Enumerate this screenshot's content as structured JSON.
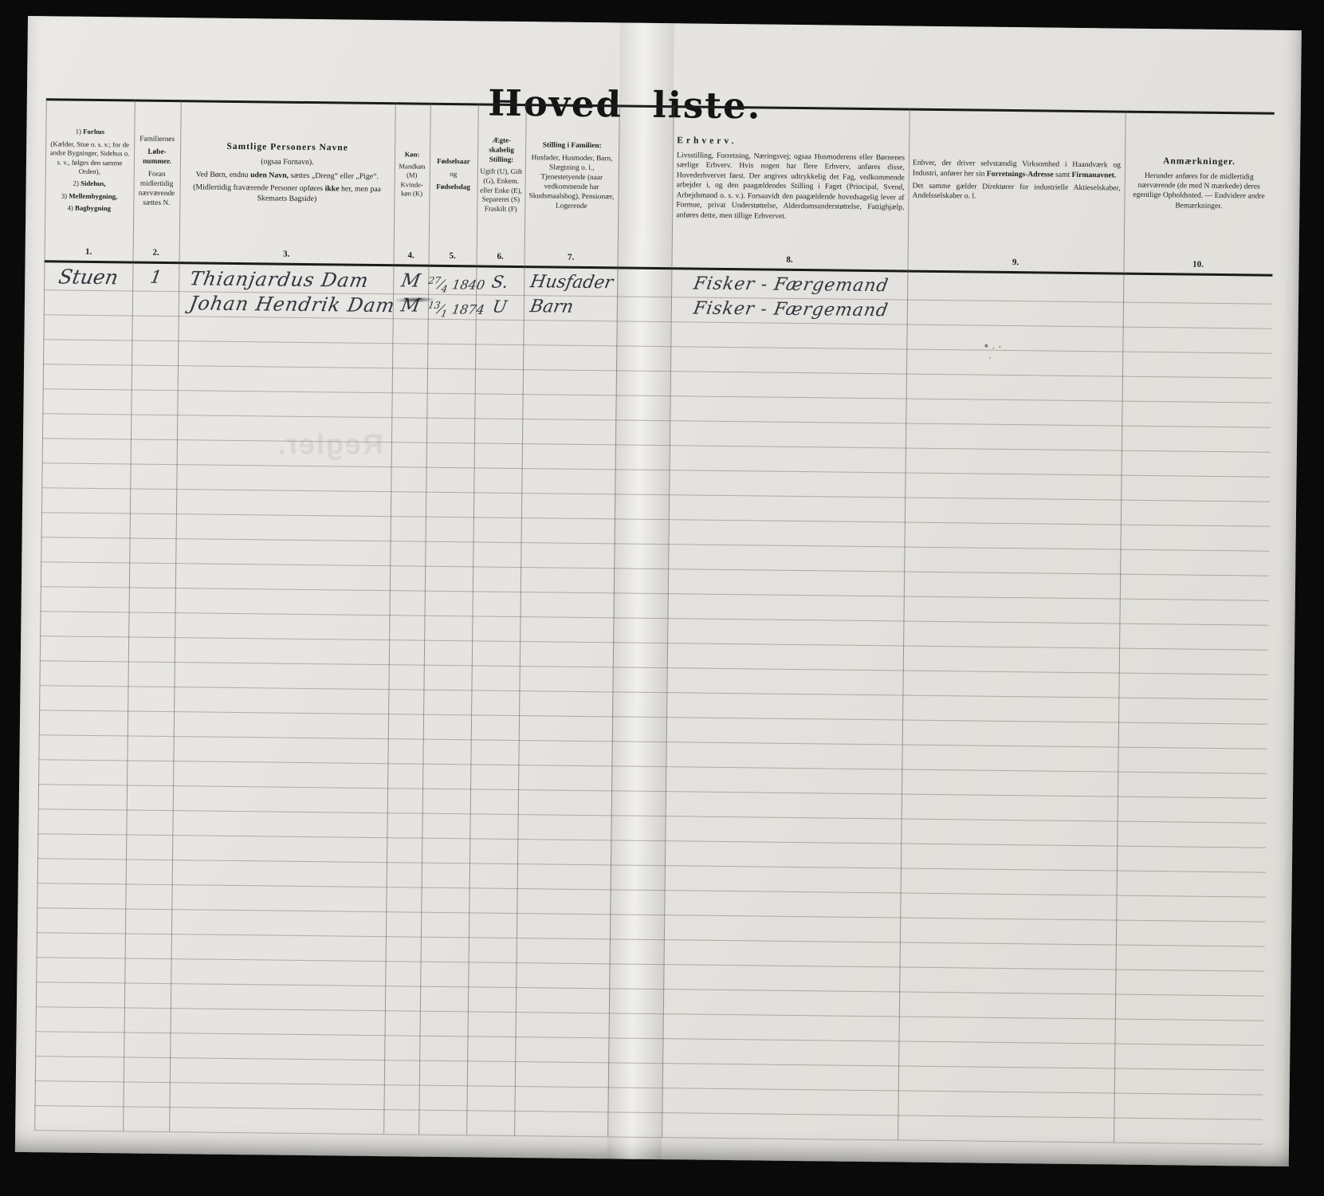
{
  "page": {
    "title": "Hoved liste."
  },
  "colors": {
    "background": "#0a0a0a",
    "paper": "#e5e3df",
    "ink": "#1b1b1b",
    "handwriting_ink": "#34343f",
    "faint_line": "#a5a29b"
  },
  "artifacts": {
    "bleed_text": "Regler."
  },
  "table": {
    "row_count": 35,
    "columns": [
      {
        "key": "c1",
        "number": "1.",
        "paragraphs": [
          {
            "seg": [
              {
                "t": "1) "
              },
              {
                "t": "Forhus",
                "b": true
              }
            ]
          },
          {
            "seg": [
              {
                "t": "(Kælder, Stue o. s. v.; for de andre Bygninger, Sidehus o. s. v., følges den samme Orden),"
              }
            ]
          },
          {
            "seg": [
              {
                "t": "2) "
              },
              {
                "t": "Sidehus,",
                "b": true
              }
            ]
          },
          {
            "seg": [
              {
                "t": "3) "
              },
              {
                "t": "Mellembygning,",
                "b": true
              }
            ]
          },
          {
            "seg": [
              {
                "t": "4) "
              },
              {
                "t": "Bagbygning",
                "b": true
              }
            ]
          }
        ]
      },
      {
        "key": "c2",
        "number": "2.",
        "paragraphs": [
          {
            "seg": [
              {
                "t": "Familiernes"
              }
            ]
          },
          {
            "seg": [
              {
                "t": "Løbe-nummer.",
                "b": true
              }
            ]
          },
          {
            "seg": [
              {
                "t": "Foran midlertidig nærværende sættes N."
              }
            ]
          }
        ]
      },
      {
        "key": "c3",
        "number": "3.",
        "paragraphs": [
          {
            "hd": true,
            "seg": [
              {
                "t": "Samtlige Personers Navne",
                "b": true
              }
            ]
          },
          {
            "seg": [
              {
                "t": "(ogsaa Fornavn)."
              }
            ]
          },
          {
            "seg": [
              {
                "t": "Ved Børn, endnu "
              },
              {
                "t": "uden Navn,",
                "b": true
              },
              {
                "t": " sættes „Dreng“ eller „Pige“."
              }
            ]
          },
          {
            "seg": [
              {
                "t": "(Midlertidig fraværende Personer opføres "
              },
              {
                "t": "ikke",
                "b": true
              },
              {
                "t": " her, men paa Skemaets Bagside)"
              }
            ]
          }
        ]
      },
      {
        "key": "c4",
        "number": "4.",
        "paragraphs": [
          {
            "seg": [
              {
                "t": "Køn:",
                "b": true
              }
            ]
          },
          {
            "seg": [
              {
                "t": "Mandkøn (M) Kvinde-køn (K)"
              }
            ]
          }
        ]
      },
      {
        "key": "c5",
        "number": "5.",
        "paragraphs": [
          {
            "seg": [
              {
                "t": "Fødselsaar",
                "b": true
              }
            ]
          },
          {
            "seg": [
              {
                "t": "og"
              }
            ]
          },
          {
            "seg": [
              {
                "t": "Fødselsdag",
                "b": true
              }
            ]
          }
        ]
      },
      {
        "key": "c6",
        "number": "6.",
        "paragraphs": [
          {
            "seg": [
              {
                "t": "Ægte-skabelig Stilling:",
                "b": true
              }
            ]
          },
          {
            "seg": [
              {
                "t": "Ugift (U), Gift (G), Enkem. eller Enke (E), Separeret (S) Fraskilt (F)"
              }
            ]
          }
        ]
      },
      {
        "key": "c7",
        "number": "7.",
        "paragraphs": [
          {
            "seg": [
              {
                "t": "Stilling i Familien:",
                "b": true
              }
            ]
          },
          {
            "seg": [
              {
                "t": "Husfader, Husmoder, Barn, Slægtning o. l., Tjenestetyende (naar vedkommende har Skudsmaalsbog), Pensionær, Logerende"
              }
            ]
          }
        ]
      },
      {
        "key": "c8",
        "number": "8.",
        "paragraphs": [
          {
            "hd": true,
            "seg": [
              {
                "t": "Erhverv.",
                "b": true
              }
            ]
          },
          {
            "seg": [
              {
                "t": "Livsstilling, Forretning, Næringsvej; ogsaa Husmoderens eller Børnenes særlige Erhverv. Hvis nogen har flere Erhverv, anføres disse, Hovederhvervet først. Der angives udtrykkelig det Fag, vedkommende arbejder i, og den paagældendes Stilling i Faget (Principal, Svend, Arbejdsmand o. s. v.). Forsaavidt den paagældende hovedsagelig lever af Formue, privat Understøttelse, Alderdomsunderstøttelse, Fattighjælp, anføres dette, men tillige Erhvervet."
              }
            ]
          }
        ]
      },
      {
        "key": "c9",
        "number": "9.",
        "paragraphs": [
          {
            "seg": [
              {
                "t": "Enhver, der driver selvstændig Virksomhed i Haandværk og Industri, anfører her sin "
              },
              {
                "t": "Forretnings-Adresse",
                "b": true
              },
              {
                "t": " samt "
              },
              {
                "t": "Firmanavnet.",
                "b": true
              }
            ]
          },
          {
            "seg": [
              {
                "t": "Det samme gælder Direktører for industrielle Aktieselskaber, Andelsselskaber o. l."
              }
            ]
          }
        ]
      },
      {
        "key": "c10",
        "number": "10.",
        "paragraphs": [
          {
            "hd": true,
            "seg": [
              {
                "t": "Anmærkninger.",
                "b": true
              }
            ]
          },
          {
            "seg": [
              {
                "t": "Herunder anføres for de midlertidig nærværende (de med N mærkede) deres egentlige Opholdssted. — Endvidere andre Bemærkninger."
              }
            ]
          }
        ]
      }
    ],
    "entries": [
      {
        "c1": "Stuen",
        "c2": "1",
        "c3": "Thianjardus Dam",
        "c4": "M",
        "c5": "27/4 1840",
        "c6": "S.",
        "c7": "Husfader",
        "c8": "Fisker - Færgemand"
      },
      {
        "c3": "Johan Hendrik Dam",
        "c4": "M",
        "c5": "13/1 1874",
        "c6": "U",
        "c7": "Barn",
        "c8": "Fisker - Færgemand"
      }
    ]
  }
}
